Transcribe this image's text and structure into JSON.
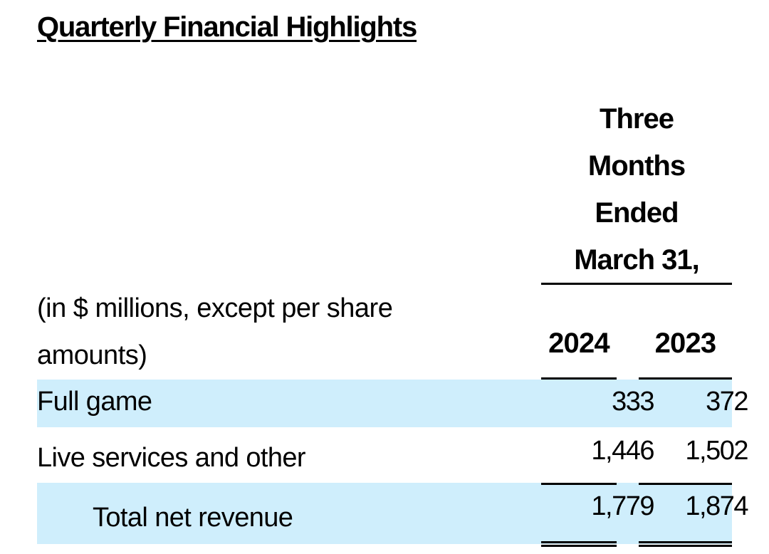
{
  "title": "Quarterly Financial Highlights",
  "header": {
    "period": [
      "Three",
      "Months",
      "Ended",
      "March 31,"
    ],
    "units_line1": "(in $ millions, except per share",
    "units_line2": "amounts)",
    "years": [
      "2024",
      "2023"
    ]
  },
  "rows": [
    {
      "label": "Full game",
      "values": [
        "333",
        "372"
      ]
    },
    {
      "label": "Live services and other",
      "values": [
        "1,446",
        "1,502"
      ]
    },
    {
      "label": "Total net revenue",
      "values": [
        "1,779",
        "1,874"
      ]
    }
  ],
  "colors": {
    "row_highlight": "#cfeefc",
    "text": "#000000"
  }
}
